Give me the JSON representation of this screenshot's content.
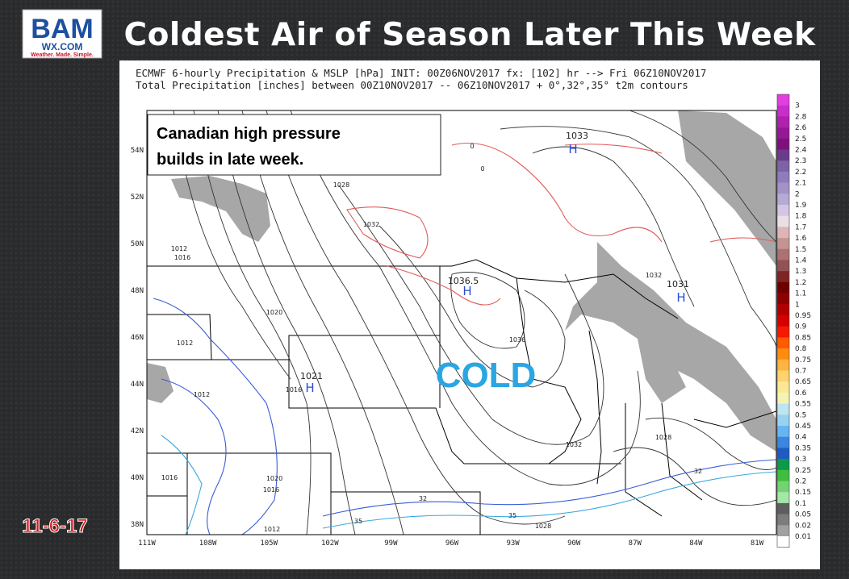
{
  "logo": {
    "line1": "BAM",
    "line2": "WX.COM",
    "tagline": "Weather. Made. Simple."
  },
  "title": "Coldest Air of Season Later This Week",
  "date": "11-6-17",
  "map": {
    "header": [
      "ECMWF 6-hourly Precipitation & MSLP [hPa] INIT: 00Z06NOV2017 fx: [102] hr --> Fri 06Z10NOV2017",
      "Total Precipitation [inches] between 00Z10NOV2017 -- 06Z10NOV2017   + 0°,32°,35° t2m contours"
    ],
    "annotation": [
      "Canadian high pressure",
      "builds in late week."
    ],
    "label": "COLD",
    "lat_labels": [
      "54N",
      "52N",
      "50N",
      "48N",
      "46N",
      "44N",
      "42N",
      "40N",
      "38N"
    ],
    "lon_labels": [
      "111W",
      "108W",
      "105W",
      "102W",
      "99W",
      "96W",
      "93W",
      "90W",
      "87W",
      "84W",
      "81W"
    ],
    "highs": [
      {
        "symbol": "H",
        "value": "1033"
      },
      {
        "symbol": "H",
        "value": "1031"
      },
      {
        "symbol": "H",
        "value": "1036.5"
      },
      {
        "symbol": "H",
        "value": "1021"
      }
    ],
    "contour_labels": [
      "1028",
      "1032",
      "1012",
      "1016",
      "1020",
      "1012",
      "1016",
      "1012",
      "1036",
      "1032",
      "1032",
      "1028",
      "1028",
      "35",
      "32",
      "32",
      "35",
      "1020",
      "1016",
      "1016",
      "1012",
      "0",
      "0"
    ],
    "colorbar": {
      "labels": [
        "3",
        "2.8",
        "2.6",
        "2.5",
        "2.4",
        "2.3",
        "2.2",
        "2.1",
        "2",
        "1.9",
        "1.8",
        "1.7",
        "1.6",
        "1.5",
        "1.4",
        "1.3",
        "1.2",
        "1.1",
        "1",
        "0.95",
        "0.9",
        "0.85",
        "0.8",
        "0.75",
        "0.7",
        "0.65",
        "0.6",
        "0.55",
        "0.5",
        "0.45",
        "0.4",
        "0.35",
        "0.3",
        "0.25",
        "0.2",
        "0.15",
        "0.1",
        "0.05",
        "0.02",
        "0.01"
      ],
      "colors": [
        "#e23ee2",
        "#c82ec8",
        "#ae22ae",
        "#961896",
        "#7e107e",
        "#6a3a8c",
        "#7a64a6",
        "#8e7cba",
        "#a292c8",
        "#b8aad6",
        "#d2c6e4",
        "#eadfe6",
        "#dcb6b6",
        "#c49494",
        "#ab7272",
        "#925252",
        "#7e2424",
        "#6e0000",
        "#8e0000",
        "#b20000",
        "#d60000",
        "#f41a00",
        "#ff5a00",
        "#ff8c10",
        "#ffb440",
        "#ffd36e",
        "#fde894",
        "#f6f2b6",
        "#bfe4f2",
        "#98d2f2",
        "#68b4f0",
        "#3a86e0",
        "#1e5cc4",
        "#0a9a4a",
        "#3ebd3e",
        "#72d372",
        "#a6e6a6",
        "#5e5e5e",
        "#7c7c7c",
        "#a0a0a0",
        "#ffffff"
      ]
    }
  }
}
